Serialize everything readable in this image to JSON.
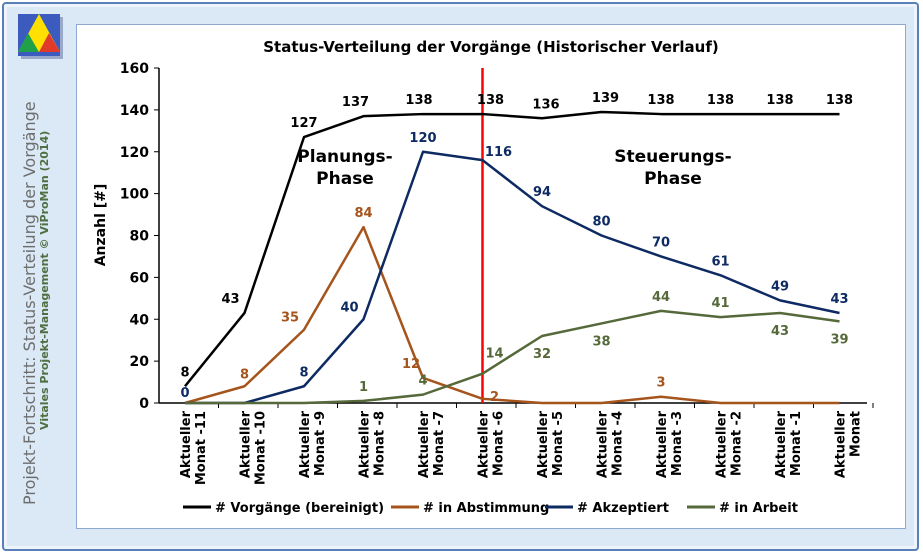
{
  "sidebar": {
    "line1": "Projekt-Fortschritt: Status-Verteilung der Vorgänge",
    "line2": "Vitales Projekt-Management © ViProMan (2014)"
  },
  "logo_icon": "triangle-logo-icon",
  "colors": {
    "total": "#000000",
    "abstimmung": "#a5541c",
    "akzeptiert": "#0e2a62",
    "arbeit": "#56693a",
    "marker": "#ff0000",
    "frame": "#dbe8f5"
  },
  "chart_data": {
    "type": "line",
    "title": "Status-Verteilung der Vorgänge (Historischer Verlauf)",
    "ylabel": "Anzahl [#]",
    "xlabel": "",
    "ylim": [
      0,
      160
    ],
    "yticks": [
      0,
      20,
      40,
      60,
      80,
      100,
      120,
      140,
      160
    ],
    "grid": false,
    "legend": "bottom",
    "categories": [
      [
        "Aktueller",
        "Monat -11"
      ],
      [
        "Aktueller",
        "Monat -10"
      ],
      [
        "Aktueller",
        "Monat -9"
      ],
      [
        "Aktueller",
        "Monat -8"
      ],
      [
        "Aktueller",
        "Monat -7"
      ],
      [
        "Aktueller",
        "Monat -6"
      ],
      [
        "Aktueller",
        "Monat -5"
      ],
      [
        "Aktueller",
        "Monat -4"
      ],
      [
        "Aktueller",
        "Monat -3"
      ],
      [
        "Aktueller",
        "Monat -2"
      ],
      [
        "Aktueller",
        "Monat -1"
      ],
      [
        "Aktueller",
        "Monat"
      ]
    ],
    "series": [
      {
        "name": "# Vorgänge (bereinigt)",
        "values": [
          8,
          43,
          127,
          137,
          138,
          138,
          136,
          139,
          138,
          138,
          138,
          138
        ],
        "labels": [
          "8",
          "43",
          "127",
          "137",
          "138",
          "138",
          "136",
          "139",
          "138",
          "138",
          "138",
          "138"
        ]
      },
      {
        "name": "# in Abstimmung",
        "values": [
          0,
          8,
          35,
          84,
          12,
          2,
          0,
          0,
          3,
          0,
          0,
          0
        ],
        "labels": [
          "",
          "8",
          "35",
          "84",
          "12",
          "2",
          "",
          "",
          "3",
          "",
          "",
          ""
        ]
      },
      {
        "name": "# Akzeptiert",
        "values": [
          0,
          0,
          8,
          40,
          120,
          116,
          94,
          80,
          70,
          61,
          49,
          43
        ],
        "labels": [
          "0",
          "",
          "8",
          "40",
          "120",
          "116",
          "94",
          "80",
          "70",
          "61",
          "49",
          "43"
        ]
      },
      {
        "name": "# in Arbeit",
        "values": [
          0,
          0,
          0,
          1,
          4,
          14,
          32,
          38,
          44,
          41,
          43,
          39
        ],
        "labels": [
          "",
          "",
          "",
          "1",
          "4",
          "14",
          "32",
          "38",
          "44",
          "41",
          "43",
          "39"
        ]
      }
    ],
    "marker_category_index": 5,
    "annotations": [
      {
        "lines": [
          "Planungs-",
          "Phase"
        ]
      },
      {
        "lines": [
          "Steuerungs-",
          "Phase"
        ]
      }
    ]
  }
}
